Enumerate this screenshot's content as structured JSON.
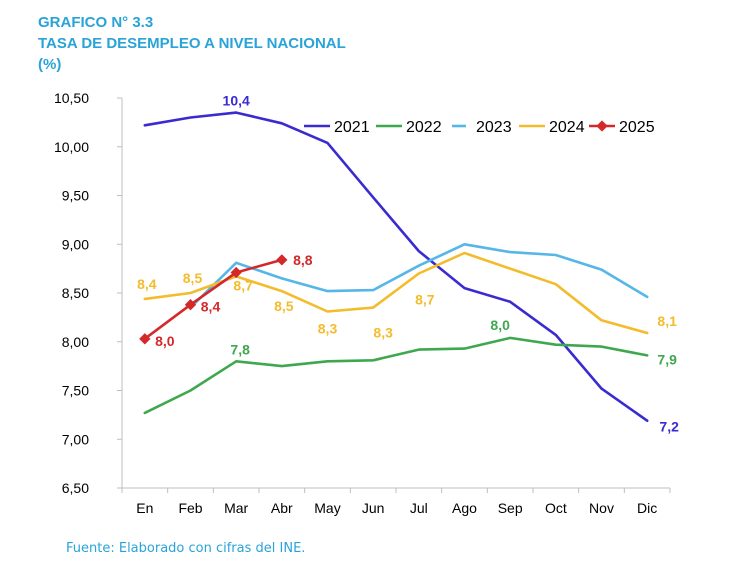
{
  "header": {
    "line1": "GRAFICO N° 3.3",
    "line2": "TASA DE DESEMPLEO A NIVEL NACIONAL",
    "line3": "(%)"
  },
  "footer": {
    "source": "Fuente: Elaborado con cifras del INE."
  },
  "chart_data": {
    "type": "line",
    "title": "TASA DE DESEMPLEO A NIVEL NACIONAL",
    "categories": [
      "En",
      "Feb",
      "Mar",
      "Abr",
      "May",
      "Jun",
      "Jul",
      "Ago",
      "Sep",
      "Oct",
      "Nov",
      "Dic"
    ],
    "ylim": [
      6.5,
      10.5
    ],
    "yticks": [
      "6,50",
      "7,00",
      "7,50",
      "8,00",
      "8,50",
      "9,00",
      "9,50",
      "10,00",
      "10,50"
    ],
    "grid": false,
    "legend_position": "top-right",
    "series": [
      {
        "name": "2021",
        "color": "#3a2bd1",
        "dashed_legend": false,
        "marker": false,
        "values": [
          10.22,
          10.3,
          10.35,
          10.24,
          10.04,
          9.48,
          8.93,
          8.55,
          8.41,
          8.07,
          7.52,
          7.19
        ]
      },
      {
        "name": "2022",
        "color": "#3fa84f",
        "dashed_legend": false,
        "marker": false,
        "values": [
          7.27,
          7.5,
          7.8,
          7.75,
          7.8,
          7.81,
          7.92,
          7.93,
          8.04,
          7.97,
          7.95,
          7.86
        ]
      },
      {
        "name": "2023",
        "color": "#55b6e7",
        "dashed_legend": true,
        "marker": false,
        "values": [
          null,
          8.35,
          8.81,
          8.65,
          8.52,
          8.53,
          8.78,
          9.0,
          8.92,
          8.89,
          8.74,
          8.46
        ]
      },
      {
        "name": "2024",
        "color": "#f3bc2c",
        "dashed_legend": false,
        "marker": false,
        "values": [
          8.44,
          8.5,
          8.67,
          8.52,
          8.31,
          8.35,
          8.7,
          8.91,
          8.75,
          8.59,
          8.22,
          8.09
        ]
      },
      {
        "name": "2025",
        "color": "#d3292b",
        "dashed_legend": false,
        "marker": true,
        "values": [
          8.03,
          8.38,
          8.71,
          8.84,
          null,
          null,
          null,
          null,
          null,
          null,
          null,
          null
        ]
      }
    ],
    "annotations": [
      {
        "text": "10,4",
        "series": "2021",
        "index": 2,
        "color": "#3a2bd1",
        "dx": 0,
        "dy": -12
      },
      {
        "text": "7,2",
        "series": "2021",
        "index": 11,
        "color": "#3a2bd1",
        "dx": 22,
        "dy": 6
      },
      {
        "text": "7,8",
        "series": "2022",
        "index": 2,
        "color": "#3fa84f",
        "dx": 4,
        "dy": -12
      },
      {
        "text": "8,0",
        "series": "2022",
        "index": 8,
        "color": "#3fa84f",
        "dx": -10,
        "dy": -13
      },
      {
        "text": "7,9",
        "series": "2022",
        "index": 11,
        "color": "#3fa84f",
        "dx": 20,
        "dy": 4
      },
      {
        "text": "8,4",
        "series": "2024",
        "index": 0,
        "color": "#f3bc2c",
        "dx": 2,
        "dy": -15
      },
      {
        "text": "8,5",
        "series": "2024",
        "index": 1,
        "color": "#f3bc2c",
        "dx": 2,
        "dy": -15
      },
      {
        "text": "8,7",
        "series": "2024",
        "index": 2,
        "color": "#f3bc2c",
        "dx": 7,
        "dy": 9
      },
      {
        "text": "8,5",
        "series": "2024",
        "index": 3,
        "color": "#f3bc2c",
        "dx": 2,
        "dy": 15
      },
      {
        "text": "8,3",
        "series": "2024",
        "index": 4,
        "color": "#f3bc2c",
        "dx": 0,
        "dy": 17
      },
      {
        "text": "8,3",
        "series": "2024",
        "index": 5,
        "color": "#f3bc2c",
        "dx": 10,
        "dy": 25
      },
      {
        "text": "8,7",
        "series": "2024",
        "index": 6,
        "color": "#f3bc2c",
        "dx": 6,
        "dy": 26
      },
      {
        "text": "8,1",
        "series": "2024",
        "index": 11,
        "color": "#f3bc2c",
        "dx": 20,
        "dy": -12
      },
      {
        "text": "8,0",
        "series": "2025",
        "index": 0,
        "color": "#d3292b",
        "dx": 20,
        "dy": 2
      },
      {
        "text": "8,4",
        "series": "2025",
        "index": 1,
        "color": "#d3292b",
        "dx": 20,
        "dy": 2
      },
      {
        "text": "8,8",
        "series": "2025",
        "index": 3,
        "color": "#d3292b",
        "dx": 21,
        "dy": 0
      }
    ]
  }
}
